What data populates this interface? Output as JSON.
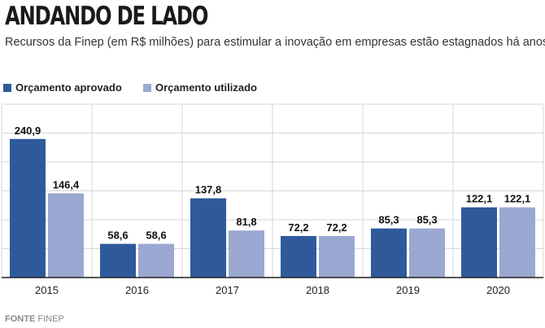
{
  "header": {
    "title": "ANDANDO DE LADO",
    "subtitle": "Recursos da Finep (em R$ milhões) para estimular a inovação em empresas estão estagnados há anos"
  },
  "legend": [
    {
      "label": "Orçamento aprovado",
      "color": "#2e5a9c"
    },
    {
      "label": "Orçamento utilizado",
      "color": "#9aa8d2"
    }
  ],
  "footer": {
    "source_label": "FONTE",
    "source_value": "FINEP"
  },
  "chart_data": {
    "type": "bar",
    "categories": [
      "2015",
      "2016",
      "2017",
      "2018",
      "2019",
      "2020"
    ],
    "series": [
      {
        "name": "Orçamento aprovado",
        "values": [
          240.9,
          58.6,
          137.8,
          72.2,
          85.3,
          122.1
        ],
        "labels": [
          "240,9",
          "58,6",
          "137,8",
          "72,2",
          "85,3",
          "122,1"
        ],
        "color": "#2e5a9c"
      },
      {
        "name": "Orçamento utilizado",
        "values": [
          146.4,
          58.6,
          81.8,
          72.2,
          85.3,
          122.1
        ],
        "labels": [
          "146,4",
          "58,6",
          "81,8",
          "72,2",
          "85,3",
          "122,1"
        ],
        "color": "#9aa8d2"
      }
    ],
    "ylim": [
      0,
      300
    ],
    "grid": true
  }
}
